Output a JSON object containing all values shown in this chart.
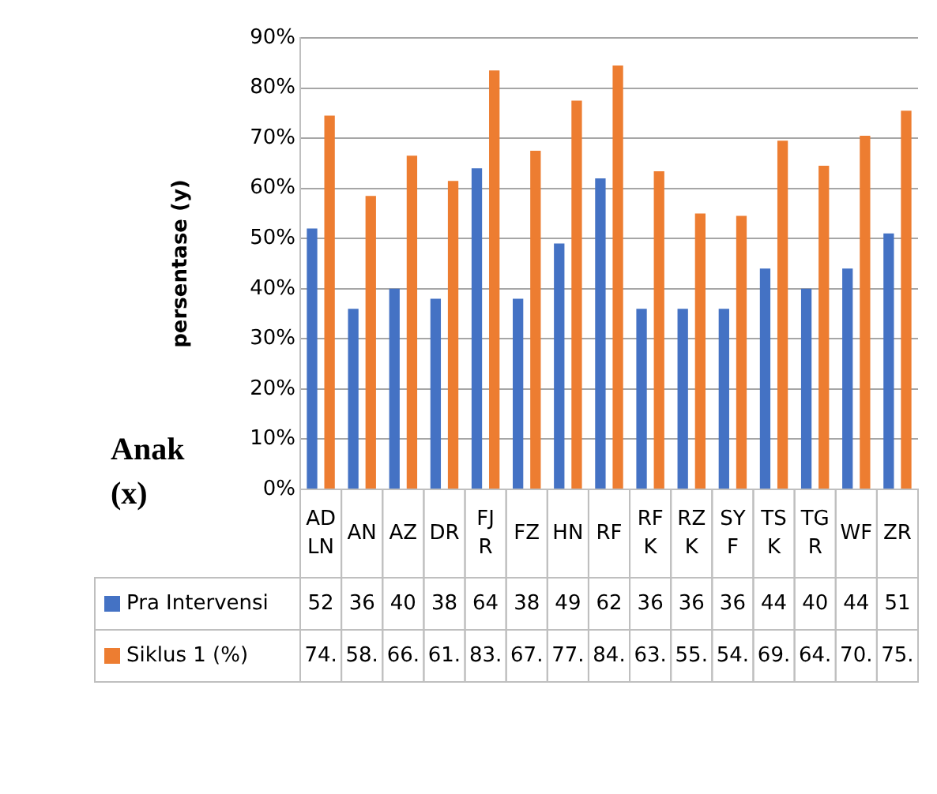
{
  "chart_data": {
    "type": "bar",
    "ylabel": "persentase (y)",
    "xlabel": "Anak (x)",
    "categories": [
      "ADLN",
      "AN",
      "AZ",
      "DR",
      "FJR",
      "FZ",
      "HN",
      "RF",
      "RFK",
      "RZK",
      "SYF",
      "TSK",
      "TGR",
      "WF",
      "ZR"
    ],
    "series": [
      {
        "name": "Pra Intervensi",
        "color": "#4472c4",
        "values": [
          52,
          36,
          40,
          38,
          64,
          38,
          49,
          62,
          36,
          36,
          36,
          44,
          40,
          44,
          51
        ],
        "value_labels": [
          "52",
          "36",
          "40",
          "38",
          "64",
          "38",
          "49",
          "62",
          "36",
          "36",
          "36",
          "44",
          "40",
          "44",
          "51"
        ]
      },
      {
        "name": "Siklus 1 (%)",
        "color": "#ed7d31",
        "values": [
          74.5,
          58.5,
          66.5,
          61.5,
          83.5,
          67.5,
          77.5,
          84.5,
          63.4,
          55.0,
          54.5,
          69.5,
          64.5,
          70.5,
          75.5
        ],
        "value_labels": [
          "74.",
          "58.",
          "66.",
          "61.",
          "83.",
          "67.",
          "77.",
          "84.",
          "63.",
          "55.",
          "54.",
          "69.",
          "64.",
          "70.",
          "75."
        ]
      }
    ],
    "ylim": [
      0,
      90
    ],
    "yticks": [
      {
        "value": 0,
        "label": "0%"
      },
      {
        "value": 10,
        "label": "10%"
      },
      {
        "value": 20,
        "label": "20%"
      },
      {
        "value": 30,
        "label": "30%"
      },
      {
        "value": 40,
        "label": "40%"
      },
      {
        "value": 50,
        "label": "50%"
      },
      {
        "value": 60,
        "label": "60%"
      },
      {
        "value": 70,
        "label": "70%"
      },
      {
        "value": 80,
        "label": "80%"
      },
      {
        "value": 90,
        "label": "90%"
      }
    ],
    "grid": "y",
    "legend": "bottom"
  }
}
